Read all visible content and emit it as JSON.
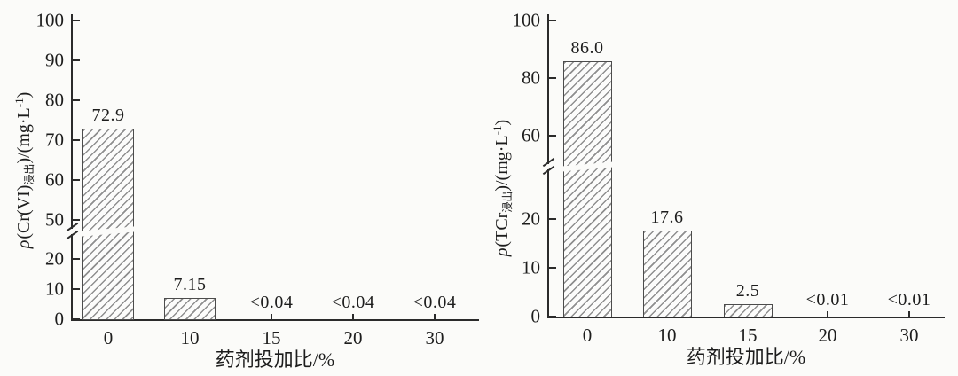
{
  "figure": {
    "background_color": "#fbfbf9",
    "axis_color": "#2b2b2b",
    "hatch_color": "#8f8f8f",
    "text_color": "#1d1d1d"
  },
  "chart_data": [
    {
      "type": "bar",
      "title": "",
      "xlabel": "药剂投加比/%",
      "ylabel": {
        "plain": "ρ(Cr(VI)浸出)/(mg·L⁻¹)",
        "rho": "ρ",
        "pre": "(Cr(VI)",
        "sub": "浸出",
        "mid": ")/(mg·L",
        "sup": "-1",
        "end": ")"
      },
      "categories": [
        "0",
        "10",
        "15",
        "20",
        "30"
      ],
      "values": [
        72.9,
        7.15,
        null,
        null,
        null
      ],
      "value_labels": [
        "72.9",
        "7.15",
        "<0.04",
        "<0.04",
        "<0.04"
      ],
      "y_ticks": [
        {
          "v": 0,
          "label": "0"
        },
        {
          "v": 10,
          "label": "10"
        },
        {
          "v": 20,
          "label": "20"
        },
        {
          "v": 50,
          "label": "50"
        },
        {
          "v": 60,
          "label": "60"
        },
        {
          "v": 70,
          "label": "70"
        },
        {
          "v": 80,
          "label": "80"
        },
        {
          "v": 90,
          "label": "90"
        },
        {
          "v": 100,
          "label": "100"
        }
      ],
      "ylim": [
        0,
        100
      ],
      "axis_break": {
        "between": [
          20,
          50
        ],
        "marker": "double-slash"
      },
      "bar_style": "diagonal-hatch",
      "grid": false,
      "legend": null
    },
    {
      "type": "bar",
      "title": "",
      "xlabel": "药剂投加比/%",
      "ylabel": {
        "plain": "ρ(TCr浸出)/(mg·L⁻¹)",
        "rho": "ρ",
        "pre": "(TCr",
        "sub": "浸出",
        "mid": ")/(mg·L",
        "sup": "-1",
        "end": ")"
      },
      "categories": [
        "0",
        "10",
        "15",
        "20",
        "30"
      ],
      "values": [
        86.0,
        17.6,
        2.5,
        null,
        null
      ],
      "value_labels": [
        "86.0",
        "17.6",
        "2.5",
        "<0.01",
        "<0.01"
      ],
      "y_ticks": [
        {
          "v": 0,
          "label": "0"
        },
        {
          "v": 10,
          "label": "10"
        },
        {
          "v": 20,
          "label": "20"
        },
        {
          "v": 60,
          "label": "60"
        },
        {
          "v": 80,
          "label": "80"
        },
        {
          "v": 100,
          "label": "100"
        }
      ],
      "ylim": [
        0,
        100
      ],
      "axis_break": {
        "between": [
          20,
          60
        ],
        "marker": "double-slash"
      },
      "bar_style": "diagonal-hatch",
      "grid": false,
      "legend": null
    }
  ]
}
